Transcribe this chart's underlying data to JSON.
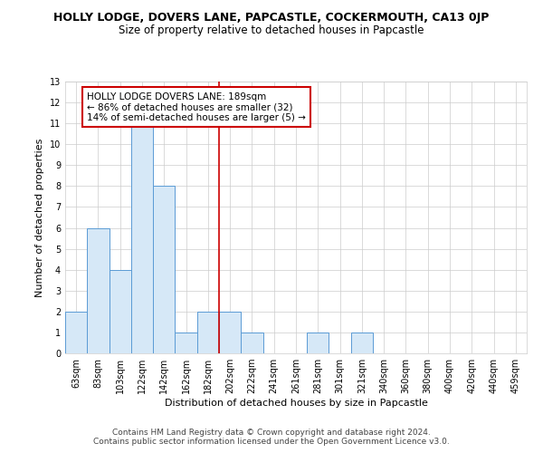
{
  "title": "HOLLY LODGE, DOVERS LANE, PAPCASTLE, COCKERMOUTH, CA13 0JP",
  "subtitle": "Size of property relative to detached houses in Papcastle",
  "xlabel": "Distribution of detached houses by size in Papcastle",
  "ylabel": "Number of detached properties",
  "bar_labels": [
    "63sqm",
    "83sqm",
    "103sqm",
    "122sqm",
    "142sqm",
    "162sqm",
    "182sqm",
    "202sqm",
    "222sqm",
    "241sqm",
    "261sqm",
    "281sqm",
    "301sqm",
    "321sqm",
    "340sqm",
    "360sqm",
    "380sqm",
    "400sqm",
    "420sqm",
    "440sqm",
    "459sqm"
  ],
  "bar_values": [
    2,
    6,
    4,
    11,
    8,
    1,
    2,
    2,
    1,
    0,
    0,
    1,
    0,
    1,
    0,
    0,
    0,
    0,
    0,
    0,
    0
  ],
  "bar_color": "#d6e8f7",
  "bar_edge_color": "#5b9bd5",
  "vline_x_index": 6.5,
  "vline_color": "#cc0000",
  "ylim": [
    0,
    13
  ],
  "yticks": [
    0,
    1,
    2,
    3,
    4,
    5,
    6,
    7,
    8,
    9,
    10,
    11,
    12,
    13
  ],
  "annotation_text": "HOLLY LODGE DOVERS LANE: 189sqm\n← 86% of detached houses are smaller (32)\n14% of semi-detached houses are larger (5) →",
  "annotation_box_color": "#ffffff",
  "annotation_box_edge": "#cc0000",
  "footer_line1": "Contains HM Land Registry data © Crown copyright and database right 2024.",
  "footer_line2": "Contains public sector information licensed under the Open Government Licence v3.0.",
  "bg_color": "#ffffff",
  "grid_color": "#cccccc",
  "title_fontsize": 9,
  "subtitle_fontsize": 8.5,
  "axis_label_fontsize": 8,
  "tick_fontsize": 7,
  "annotation_fontsize": 7.5,
  "footer_fontsize": 6.5
}
